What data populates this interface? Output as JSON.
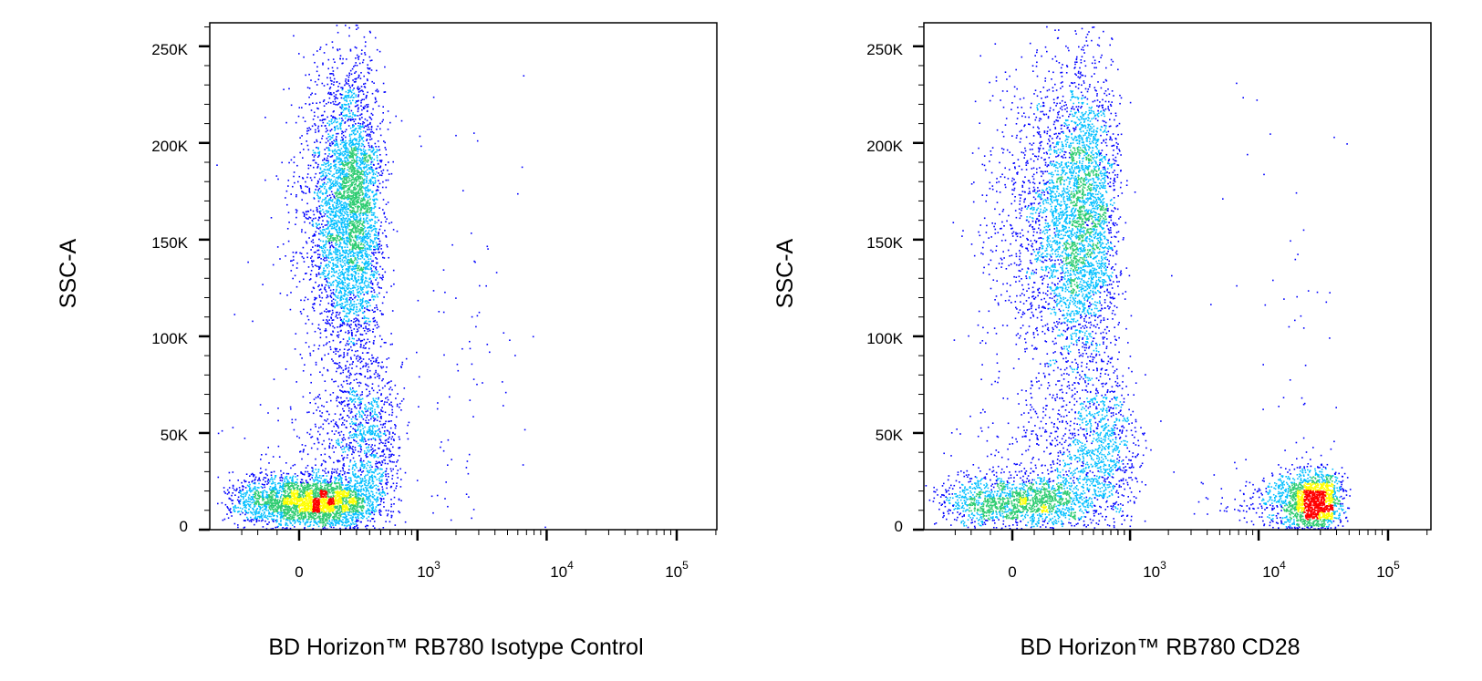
{
  "chart_data": [
    {
      "type": "scatter",
      "ylabel": "SSC-A",
      "xlabel": "BD Horizon™ RB780 Isotype Control",
      "y_scale": "linear",
      "x_scale": "biexponential",
      "xlim": [
        -400,
        200000
      ],
      "ylim": [
        0,
        262144
      ],
      "y_ticks": [
        "0",
        "50K",
        "100K",
        "150K",
        "200K",
        "250K"
      ],
      "y_tick_values": [
        0,
        50000,
        100000,
        150000,
        200000,
        250000
      ],
      "x_ticks": [
        {
          "base": "0",
          "exp": ""
        },
        {
          "base": "10",
          "exp": "3"
        },
        {
          "base": "10",
          "exp": "4"
        },
        {
          "base": "10",
          "exp": "5"
        }
      ],
      "x_tick_values": [
        0,
        1000,
        10000,
        100000
      ],
      "colormap": [
        "#0000ff",
        "#00bfff",
        "#2ecc71",
        "#ffff00",
        "#ff0000"
      ],
      "populations": [
        {
          "x_center": 50,
          "y_center": 15000,
          "x_spread": 180,
          "y_spread": 7000,
          "fraction": 0.34
        },
        {
          "x_center": 250,
          "y_center": 165000,
          "x_spread": 120,
          "y_spread": 38000,
          "fraction": 0.46
        },
        {
          "x_center": 350,
          "y_center": 45000,
          "x_spread": 180,
          "y_spread": 22000,
          "fraction": 0.12
        },
        {
          "x_center": 800,
          "y_center": 80000,
          "x_spread": 2500,
          "y_spread": 70000,
          "fraction": 0.02
        }
      ],
      "grid": false,
      "legend": "none"
    },
    {
      "type": "scatter",
      "ylabel": "SSC-A",
      "xlabel": "BD Horizon™ RB780 CD28",
      "y_scale": "linear",
      "x_scale": "biexponential",
      "xlim": [
        -400,
        150000
      ],
      "ylim": [
        0,
        262144
      ],
      "y_ticks": [
        "0",
        "50K",
        "100K",
        "150K",
        "200K",
        "250K"
      ],
      "y_tick_values": [
        0,
        50000,
        100000,
        150000,
        200000,
        250000
      ],
      "x_ticks": [
        {
          "base": "0",
          "exp": ""
        },
        {
          "base": "10",
          "exp": "3"
        },
        {
          "base": "10",
          "exp": "4"
        },
        {
          "base": "10",
          "exp": "5"
        }
      ],
      "x_tick_values": [
        0,
        1000,
        10000,
        100000
      ],
      "colormap": [
        "#0000ff",
        "#00bfff",
        "#2ecc71",
        "#ffff00",
        "#ff0000"
      ],
      "populations": [
        {
          "x_center": 30,
          "y_center": 15000,
          "x_spread": 200,
          "y_spread": 7000,
          "fraction": 0.17
        },
        {
          "x_center": 350,
          "y_center": 160000,
          "x_spread": 200,
          "y_spread": 40000,
          "fraction": 0.45
        },
        {
          "x_center": 500,
          "y_center": 40000,
          "x_spread": 300,
          "y_spread": 22000,
          "fraction": 0.14
        },
        {
          "x_center": 25000,
          "y_center": 15000,
          "x_spread": 14000,
          "y_spread": 8000,
          "fraction": 0.2
        },
        {
          "x_center": 8000,
          "y_center": 90000,
          "x_spread": 30000,
          "y_spread": 70000,
          "fraction": 0.01
        }
      ],
      "grid": false,
      "legend": "none"
    }
  ]
}
